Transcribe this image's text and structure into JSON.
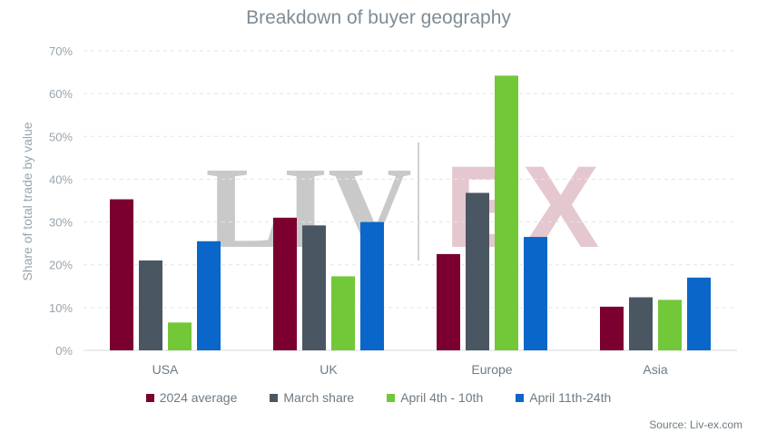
{
  "chart_data": {
    "type": "bar",
    "title": "Breakdown of buyer geography",
    "ylabel": "Share of total trade by value",
    "xlabel": "",
    "categories": [
      "USA",
      "UK",
      "Europe",
      "Asia"
    ],
    "ylim": [
      0,
      70
    ],
    "yticks": [
      "0%",
      "10%",
      "20%",
      "30%",
      "40%",
      "50%",
      "60%",
      "70%"
    ],
    "grid": true,
    "legend_position": "bottom",
    "series": [
      {
        "name": "2024 average",
        "color": "#7b0030",
        "values": [
          35.3,
          31.0,
          22.5,
          10.2
        ]
      },
      {
        "name": "March share",
        "color": "#4a5763",
        "values": [
          21.0,
          29.2,
          36.8,
          12.4
        ]
      },
      {
        "name": "April 4th - 10th",
        "color": "#72c838",
        "values": [
          6.5,
          17.3,
          64.2,
          11.8
        ]
      },
      {
        "name": "April 11th-24th",
        "color": "#0a66c8",
        "values": [
          25.5,
          30.0,
          26.5,
          17.0
        ]
      }
    ]
  },
  "watermark": {
    "left": "LIV",
    "right": "EX",
    "left_color": "#c9c9c9",
    "right_color": "#e5c8cf"
  },
  "source": "Source: Liv-ex.com"
}
